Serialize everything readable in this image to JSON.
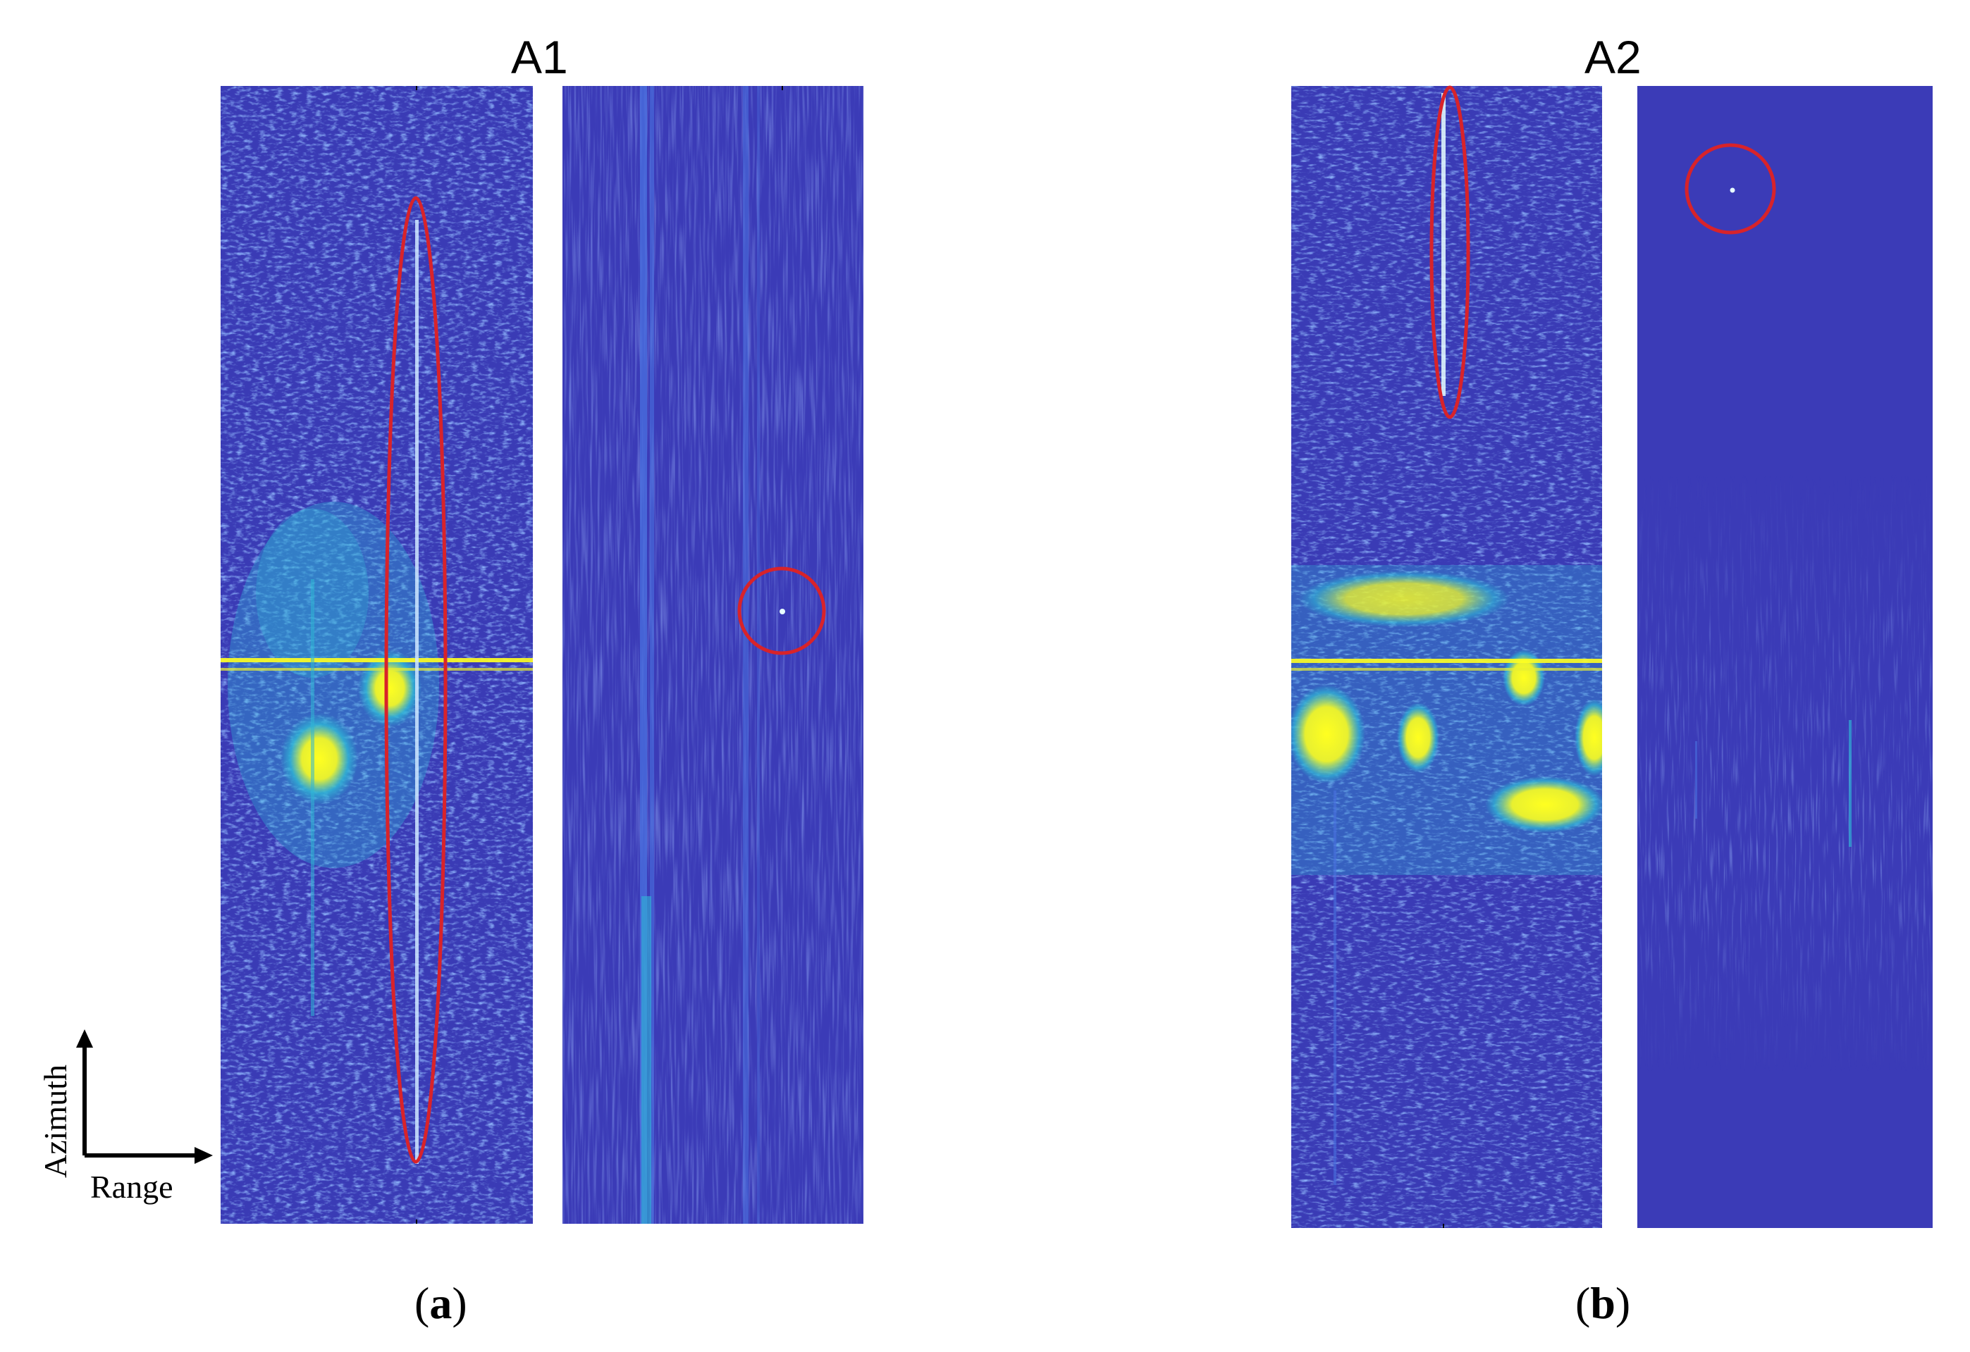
{
  "figure": {
    "panel_a": {
      "title": "A1",
      "caption_label": "a"
    },
    "panel_b": {
      "title": "A2",
      "caption_label": "b"
    },
    "axis_indicator": {
      "vertical_label": "Azimuth",
      "horizontal_label": "Range"
    },
    "colors": {
      "background": "#3a3bb5",
      "speckle_light": "#4a72e0",
      "speckle_cyan": "#2fb7d6",
      "hot": "#ffff20",
      "marker": "#d8232a"
    }
  }
}
